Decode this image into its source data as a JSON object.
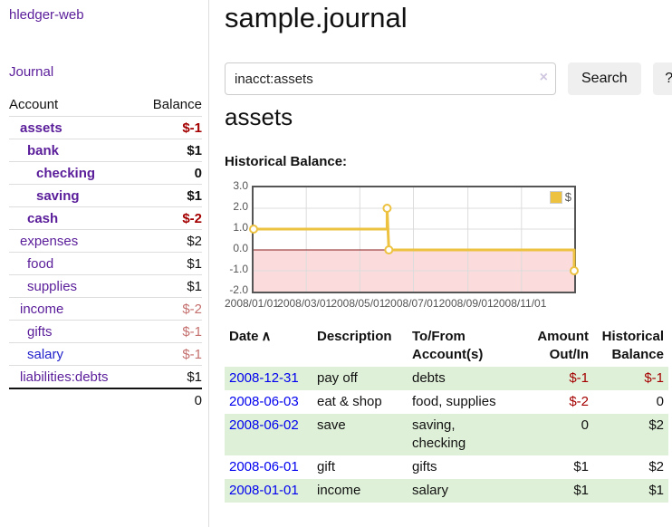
{
  "app": {
    "title": "hledger-web"
  },
  "sidebar": {
    "journal_link": "Journal",
    "header": {
      "account": "Account",
      "balance": "Balance"
    },
    "accounts": [
      {
        "name": "assets",
        "balance": "$-1",
        "level": 1,
        "bold": true,
        "balance_class": "bal-neg",
        "link_class": ""
      },
      {
        "name": "bank",
        "balance": "$1",
        "level": 2,
        "bold": true,
        "balance_class": "bal-pos",
        "link_class": ""
      },
      {
        "name": "checking",
        "balance": "0",
        "level": 3,
        "bold": true,
        "balance_class": "bal-pos",
        "link_class": ""
      },
      {
        "name": "saving",
        "balance": "$1",
        "level": 3,
        "bold": true,
        "balance_class": "bal-pos",
        "link_class": ""
      },
      {
        "name": "cash",
        "balance": "$-2",
        "level": 2,
        "bold": true,
        "balance_class": "bal-neg",
        "link_class": ""
      },
      {
        "name": "expenses",
        "balance": "$2",
        "level": 1,
        "bold": false,
        "balance_class": "bal-pos",
        "link_class": ""
      },
      {
        "name": "food",
        "balance": "$1",
        "level": 2,
        "bold": false,
        "balance_class": "bal-pos",
        "link_class": ""
      },
      {
        "name": "supplies",
        "balance": "$1",
        "level": 2,
        "bold": false,
        "balance_class": "bal-pos",
        "link_class": ""
      },
      {
        "name": "income",
        "balance": "$-2",
        "level": 1,
        "bold": false,
        "balance_class": "bal-negsoft",
        "link_class": ""
      },
      {
        "name": "gifts",
        "balance": "$-1",
        "level": 2,
        "bold": false,
        "balance_class": "bal-negsoft",
        "link_class": ""
      },
      {
        "name": "salary",
        "balance": "$-1",
        "level": 2,
        "bold": false,
        "balance_class": "bal-negsoft",
        "link_class": "blue"
      },
      {
        "name": "liabilities:debts",
        "balance": "$1",
        "level": 1,
        "bold": false,
        "balance_class": "bal-pos",
        "link_class": ""
      }
    ],
    "total": "0"
  },
  "header": {
    "title": "sample.journal"
  },
  "search": {
    "value": "inacct:assets",
    "clear_icon": "×",
    "button": "Search",
    "help_button": "?"
  },
  "content": {
    "heading": "assets",
    "chart_title": "Historical Balance:"
  },
  "chart_data": {
    "type": "line",
    "title": "Historical Balance",
    "legend_label": "$",
    "legend_position": "top-right",
    "series": [
      {
        "name": "$",
        "color": "#edc240",
        "points_day_value": [
          [
            0,
            1
          ],
          [
            152,
            1
          ],
          [
            152,
            2
          ],
          [
            154,
            0
          ],
          [
            365,
            0
          ],
          [
            365,
            -1
          ]
        ],
        "markers_day_value": [
          [
            0,
            1
          ],
          [
            152,
            2
          ],
          [
            154,
            0
          ],
          [
            365,
            -1
          ]
        ]
      }
    ],
    "x_tick_labels": [
      "2008/01/01",
      "2008/03/01",
      "2008/05/01",
      "2008/07/01",
      "2008/09/01",
      "2008/11/01"
    ],
    "x_tick_days": [
      0,
      60,
      121,
      182,
      244,
      305
    ],
    "x_range_days": 365,
    "y_tick_labels": [
      "3.0",
      "2.0",
      "1.0",
      "0.0",
      "-1.0",
      "-2.0"
    ],
    "y_tick_values": [
      3,
      2,
      1,
      0,
      -1,
      -2
    ],
    "ylim": [
      -2,
      3
    ],
    "grid": true,
    "grid_color": "#dcdcdc",
    "negative_region_fill": "#fbdbdb",
    "zero_line_color": "#8b1d1d"
  },
  "table": {
    "headers": {
      "date": "Date",
      "sort_indicator": "∧",
      "description": "Description",
      "accounts": "To/From Account(s)",
      "amount": "Amount Out/In",
      "balance": "Historical Balance"
    },
    "rows": [
      {
        "date": "2008-12-31",
        "description": "pay off",
        "accounts": "debts",
        "amount": "$-1",
        "balance": "$-1",
        "amount_class": "neg",
        "balance_class": "neg"
      },
      {
        "date": "2008-06-03",
        "description": "eat & shop",
        "accounts": "food, supplies",
        "amount": "$-2",
        "balance": "0",
        "amount_class": "neg",
        "balance_class": ""
      },
      {
        "date": "2008-06-02",
        "description": "save",
        "accounts": "saving,\nchecking",
        "amount": "0",
        "balance": "$2",
        "amount_class": "",
        "balance_class": ""
      },
      {
        "date": "2008-06-01",
        "description": "gift",
        "accounts": "gifts",
        "amount": "$1",
        "balance": "$2",
        "amount_class": "",
        "balance_class": ""
      },
      {
        "date": "2008-01-01",
        "description": "income",
        "accounts": "salary",
        "amount": "$1",
        "balance": "$1",
        "amount_class": "",
        "balance_class": ""
      }
    ]
  },
  "colors": {
    "link_purple": "#5a1d9a",
    "link_blue": "#2222cc",
    "date_link_blue": "#0000ee",
    "negative_strong": "#a40000",
    "negative_soft": "#c4706e",
    "row_stripe_green": "#dff0d8",
    "series_gold": "#edc240"
  }
}
